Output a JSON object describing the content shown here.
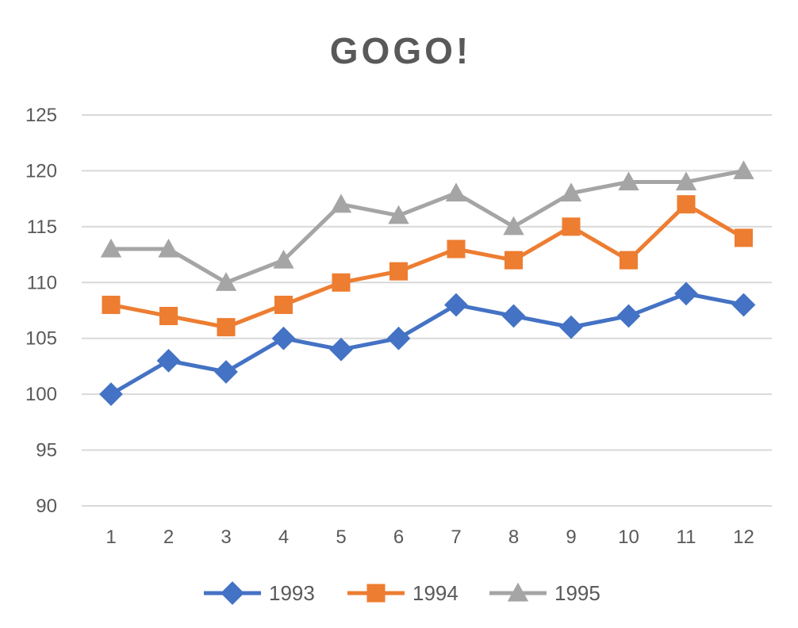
{
  "chart_data": {
    "type": "line",
    "title": "GOGO!",
    "xlabel": "",
    "ylabel": "",
    "categories": [
      "1",
      "2",
      "3",
      "4",
      "5",
      "6",
      "7",
      "8",
      "9",
      "10",
      "11",
      "12"
    ],
    "ylim": [
      90,
      125
    ],
    "yticks": [
      "90",
      "95",
      "100",
      "105",
      "110",
      "115",
      "120",
      "125"
    ],
    "grid": "horizontal",
    "legend_position": "bottom",
    "series": [
      {
        "name": "1993",
        "marker": "diamond",
        "color": "#4472c4",
        "values": [
          100,
          103,
          102,
          105,
          104,
          105,
          108,
          107,
          106,
          107,
          109,
          108
        ]
      },
      {
        "name": "1994",
        "marker": "square",
        "color": "#ed7d31",
        "values": [
          108,
          107,
          106,
          108,
          110,
          111,
          113,
          112,
          115,
          112,
          117,
          114
        ]
      },
      {
        "name": "1995",
        "marker": "triangle",
        "color": "#a5a5a5",
        "values": [
          113,
          113,
          110,
          112,
          117,
          116,
          118,
          115,
          118,
          119,
          119,
          120
        ]
      }
    ]
  }
}
